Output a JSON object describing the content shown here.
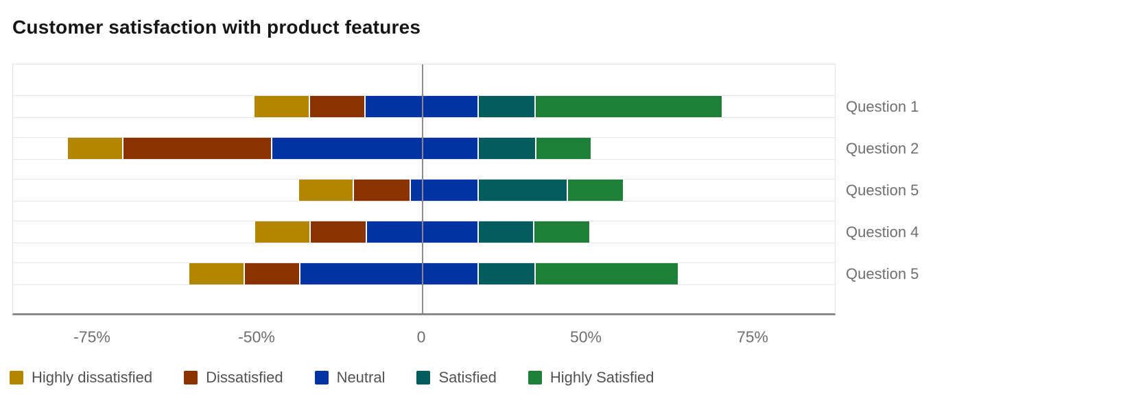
{
  "chart_data": {
    "type": "bar",
    "subtype": "diverging-stacked-horizontal-likert",
    "title": "Customer satisfaction with product features",
    "categories": [
      "Question 1",
      "Question 2",
      "Question 5",
      "Question 4",
      "Question 5"
    ],
    "unit": "%",
    "series": [
      {
        "name": "Highly dissatisfied",
        "color": "#B38600",
        "values": [
          16.7,
          16.7,
          16.5,
          16.7,
          16.7
        ]
      },
      {
        "name": "Dissatisfied",
        "color": "#8A3300",
        "values": [
          16.7,
          44.8,
          17.1,
          16.9,
          16.7
        ]
      },
      {
        "name": "Neutral",
        "color": "#0434A4",
        "values": [
          34.1,
          62.2,
          20.5,
          33.7,
          53.7
        ]
      },
      {
        "name": "Satisfied",
        "color": "#055C5C",
        "values": [
          17.1,
          17.4,
          26.9,
          16.7,
          17.1
        ]
      },
      {
        "name": "Highly Satisfied",
        "color": "#1E8038",
        "values": [
          56.4,
          16.7,
          16.9,
          17.1,
          43.2
        ]
      }
    ],
    "neutral_right_of_zero_pct": [
      16.7,
      16.7,
      16.7,
      16.7,
      16.7
    ],
    "x_axis": {
      "tick_labels": [
        "-75%",
        "-50%",
        "0",
        "50%",
        "75%"
      ],
      "equally_spaced_ticks": true,
      "zero_line": true
    },
    "legend": {
      "position": "bottom-left",
      "labels": [
        "Highly dissatisfied",
        "Dissatisfied",
        "Neutral",
        "Satisfied",
        "Highly Satisfied"
      ]
    },
    "grid": "light horizontal lines at bar row boundaries; vertical gray zero line",
    "style": {
      "title_color": "#161616",
      "axis_line_color": "#8a8a8a",
      "row_line_color": "#e6e6e6",
      "tick_label_color": "#6f6f6f",
      "category_label_color": "#6f6f6f",
      "legend_text_color": "#525252",
      "background": "#ffffff"
    }
  }
}
